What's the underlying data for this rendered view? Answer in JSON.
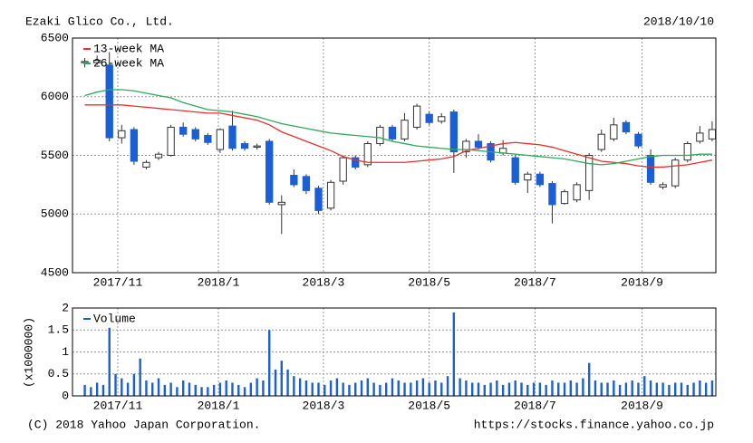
{
  "header": {
    "title": "Ezaki Glico Co., Ltd.",
    "date": "2018/10/10"
  },
  "footer": {
    "copyright": "(C) 2018 Yahoo Japan Corporation.",
    "url": "https://stocks.finance.yahoo.co.jp"
  },
  "chart_data": [
    {
      "type": "candlestick",
      "up_color": "#ffffff",
      "down_color": "#1a5fd6",
      "grid": true,
      "legend": "upper left",
      "xlim": [
        -1,
        51.3
      ],
      "xticks": [
        {
          "value": 2.68,
          "label": "2017/11"
        },
        {
          "value": 10.86,
          "label": "2018/1"
        },
        {
          "value": 19.4,
          "label": "2018/3"
        },
        {
          "value": 28.0,
          "label": "2018/5"
        },
        {
          "value": 36.6,
          "label": "2018/7"
        },
        {
          "value": 45.3,
          "label": "2018/9"
        }
      ],
      "ylim": [
        4500,
        6500
      ],
      "yticks": [
        4500,
        5000,
        5500,
        6000,
        6500
      ],
      "open": [
        6290,
        6290,
        6270,
        5650,
        5720,
        5400,
        5480,
        5500,
        5740,
        5720,
        5670,
        5550,
        5750,
        5600,
        5570,
        5620,
        5080,
        5330,
        5320,
        5220,
        5050,
        5280,
        5480,
        5420,
        5600,
        5740,
        5640,
        5740,
        5850,
        5790,
        5870,
        5530,
        5620,
        5600,
        5520,
        5480,
        5290,
        5340,
        5260,
        5090,
        5120,
        5200,
        5550,
        5640,
        5780,
        5680,
        5500,
        5230,
        5240,
        5460,
        5620,
        5640
      ],
      "high": [
        6330,
        6350,
        6380,
        5760,
        5740,
        5460,
        5530,
        5760,
        5780,
        5740,
        5690,
        5730,
        5880,
        5620,
        5600,
        5640,
        5160,
        5380,
        5340,
        5240,
        5290,
        5500,
        5500,
        5620,
        5760,
        5760,
        5860,
        5940,
        5870,
        5860,
        5890,
        5640,
        5680,
        5620,
        5630,
        5500,
        5360,
        5360,
        5280,
        5210,
        5270,
        5520,
        5720,
        5820,
        5800,
        5700,
        5550,
        5270,
        5480,
        5620,
        5750,
        5790
      ],
      "low": [
        6250,
        6270,
        5620,
        5600,
        5420,
        5380,
        5460,
        5490,
        5660,
        5620,
        5590,
        5520,
        5540,
        5540,
        5550,
        5080,
        4830,
        5230,
        5170,
        5000,
        5030,
        5250,
        5380,
        5400,
        5580,
        5620,
        5620,
        5720,
        5760,
        5770,
        5350,
        5480,
        5550,
        5440,
        5500,
        5250,
        5180,
        5230,
        4920,
        5080,
        5100,
        5120,
        5530,
        5620,
        5680,
        5560,
        5250,
        5210,
        5220,
        5440,
        5600,
        5620
      ],
      "close": [
        6300,
        6310,
        5650,
        5710,
        5450,
        5440,
        5510,
        5740,
        5680,
        5640,
        5610,
        5720,
        5560,
        5560,
        5580,
        5100,
        5100,
        5250,
        5200,
        5030,
        5270,
        5480,
        5400,
        5600,
        5740,
        5640,
        5800,
        5920,
        5780,
        5830,
        5530,
        5620,
        5570,
        5460,
        5560,
        5270,
        5340,
        5250,
        5080,
        5190,
        5250,
        5500,
        5680,
        5760,
        5700,
        5580,
        5270,
        5250,
        5460,
        5600,
        5690,
        5720
      ],
      "series": [
        {
          "name": "13-week MA",
          "color": "#e8302c",
          "values": [
            5930,
            5930,
            5930,
            5930,
            5920,
            5910,
            5900,
            5890,
            5880,
            5870,
            5860,
            5860,
            5840,
            5820,
            5800,
            5760,
            5700,
            5660,
            5620,
            5580,
            5540,
            5490,
            5460,
            5440,
            5440,
            5440,
            5440,
            5450,
            5460,
            5470,
            5490,
            5540,
            5560,
            5580,
            5600,
            5610,
            5600,
            5590,
            5570,
            5540,
            5510,
            5480,
            5450,
            5440,
            5430,
            5410,
            5400,
            5400,
            5410,
            5420,
            5440,
            5460
          ]
        },
        {
          "name": "26-week MA",
          "color": "#2eaa5c",
          "values": [
            6010,
            6040,
            6060,
            6060,
            6050,
            6030,
            6010,
            5990,
            5950,
            5920,
            5890,
            5880,
            5870,
            5850,
            5830,
            5800,
            5770,
            5750,
            5730,
            5710,
            5690,
            5680,
            5670,
            5660,
            5650,
            5620,
            5600,
            5580,
            5570,
            5560,
            5550,
            5550,
            5540,
            5530,
            5520,
            5510,
            5500,
            5490,
            5480,
            5470,
            5450,
            5430,
            5420,
            5430,
            5450,
            5470,
            5490,
            5500,
            5500,
            5500,
            5510,
            5510
          ]
        }
      ]
    },
    {
      "type": "bar",
      "y_label": "(x1000000)",
      "grid": true,
      "legend": "upper left",
      "xlim": [
        -2,
        102.6
      ],
      "xticks": [
        {
          "value": 5.36,
          "label": "2017/11"
        },
        {
          "value": 21.72,
          "label": "2018/1"
        },
        {
          "value": 38.8,
          "label": "2018/3"
        },
        {
          "value": 56.0,
          "label": "2018/5"
        },
        {
          "value": 73.2,
          "label": "2018/7"
        },
        {
          "value": 90.6,
          "label": "2018/9"
        }
      ],
      "ylim": [
        0,
        2
      ],
      "yticks": [
        0,
        0.5,
        1,
        1.5,
        2
      ],
      "series": [
        {
          "name": "Volume",
          "color": "#1a5fd6",
          "values": [
            0.25,
            0.2,
            0.3,
            0.25,
            1.55,
            0.5,
            0.4,
            0.3,
            0.5,
            0.85,
            0.35,
            0.3,
            0.4,
            0.25,
            0.3,
            0.2,
            0.35,
            0.3,
            0.25,
            0.2,
            0.2,
            0.25,
            0.3,
            0.35,
            0.3,
            0.25,
            0.2,
            0.3,
            0.4,
            0.35,
            1.5,
            0.6,
            0.8,
            0.6,
            0.45,
            0.4,
            0.35,
            0.3,
            0.3,
            0.25,
            0.35,
            0.4,
            0.3,
            0.25,
            0.3,
            0.35,
            0.4,
            0.3,
            0.25,
            0.3,
            0.4,
            0.35,
            0.3,
            0.3,
            0.35,
            0.4,
            0.3,
            0.35,
            0.3,
            0.45,
            1.9,
            0.4,
            0.35,
            0.3,
            0.3,
            0.25,
            0.3,
            0.35,
            0.25,
            0.3,
            0.35,
            0.3,
            0.25,
            0.3,
            0.3,
            0.25,
            0.35,
            0.3,
            0.3,
            0.35,
            0.3,
            0.4,
            0.75,
            0.35,
            0.3,
            0.3,
            0.35,
            0.25,
            0.3,
            0.35,
            0.3,
            0.45,
            0.35,
            0.3,
            0.3,
            0.25,
            0.3,
            0.3,
            0.25,
            0.3,
            0.35,
            0.3,
            0.35
          ]
        }
      ]
    }
  ]
}
